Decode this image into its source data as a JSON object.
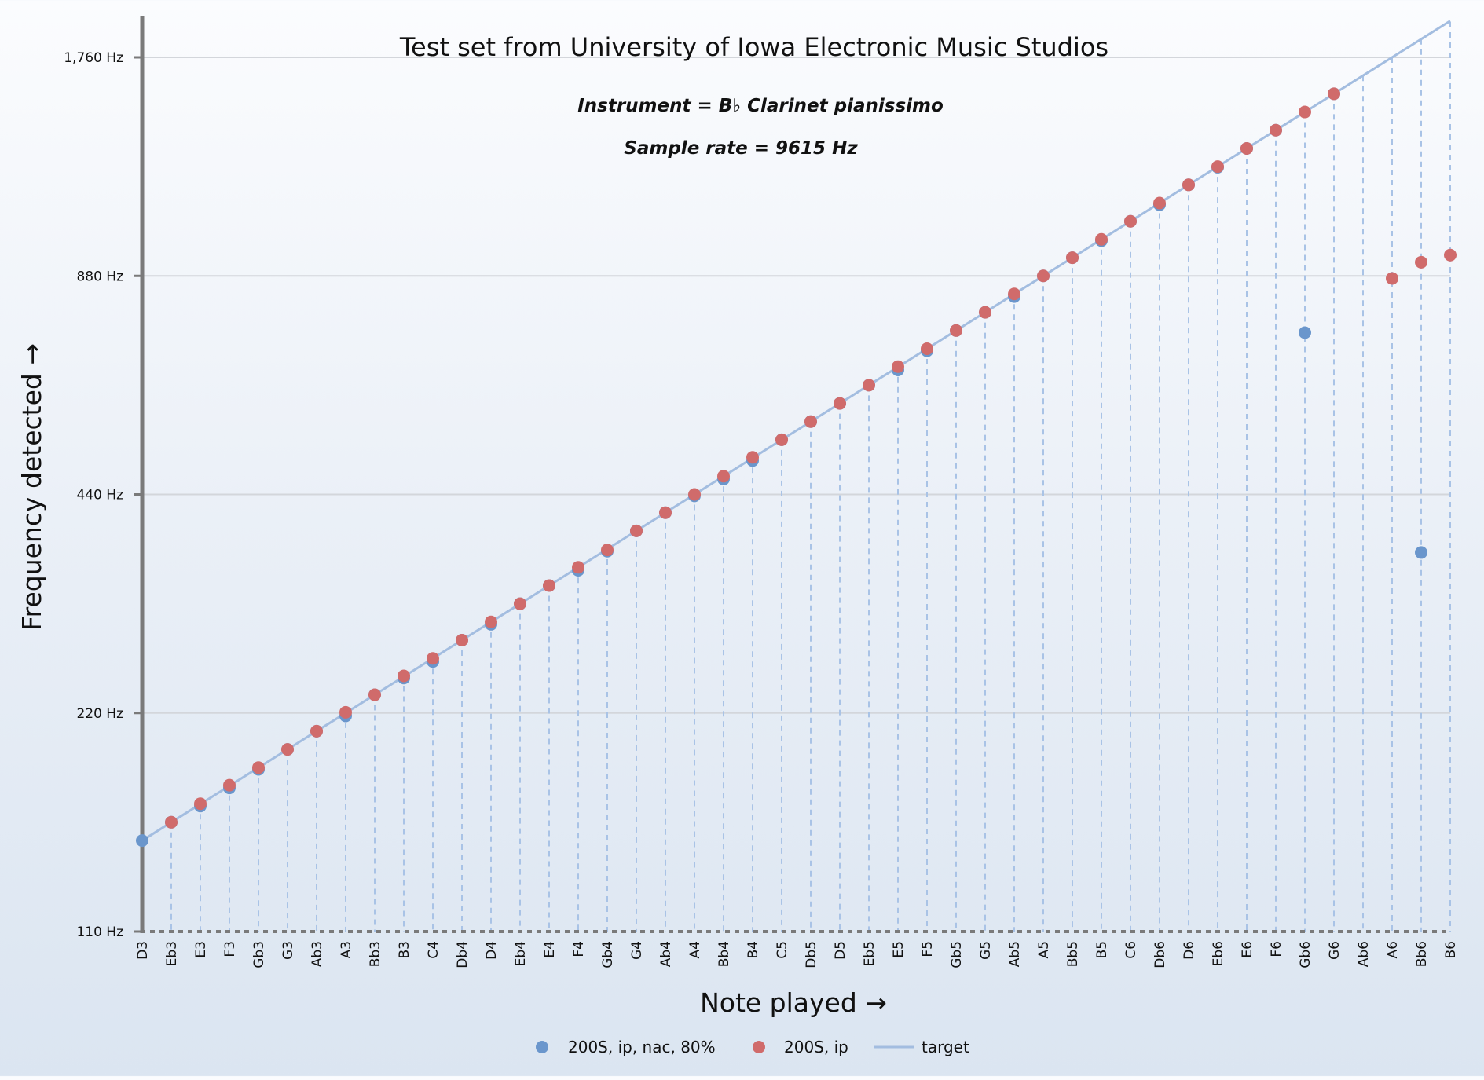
{
  "chart_data": {
    "type": "scatter",
    "title": "Test set from University of Iowa Electronic Music Studios",
    "subtitles": [
      "Instrument = B♭ Clarinet pianissimo",
      "Sample rate = 9615 Hz"
    ],
    "xlabel": "Note played →",
    "ylabel": "Frequency detected →",
    "y_scale": "log2",
    "ylim": [
      110,
      1760
    ],
    "y_ticks": [
      {
        "value": 110,
        "label": "110 Hz"
      },
      {
        "value": 220,
        "label": "220 Hz"
      },
      {
        "value": 440,
        "label": "440 Hz"
      },
      {
        "value": 880,
        "label": "880 Hz"
      },
      {
        "value": 1760,
        "label": "1,760 Hz"
      }
    ],
    "grid": true,
    "legend_position": "bottom",
    "categories": [
      "D3",
      "Eb3",
      "E3",
      "F3",
      "Gb3",
      "G3",
      "Ab3",
      "A3",
      "Bb3",
      "B3",
      "C4",
      "Db4",
      "D4",
      "Eb4",
      "E4",
      "F4",
      "Gb4",
      "G4",
      "Ab4",
      "A4",
      "Bb4",
      "B4",
      "C5",
      "Db5",
      "D5",
      "Eb5",
      "E5",
      "F5",
      "Gb5",
      "G5",
      "Ab5",
      "A5",
      "Bb5",
      "B5",
      "C6",
      "Db6",
      "D6",
      "Eb6",
      "E6",
      "F6",
      "Gb6",
      "G6",
      "Ab6",
      "A6",
      "Bb6",
      "B6"
    ],
    "series": [
      {
        "name": "200S, ip, nac, 80%",
        "kind": "scatter",
        "color": "#6a96cc",
        "values": [
          146.8,
          155.6,
          163.8,
          173.5,
          184.0,
          196.0,
          207.7,
          218.0,
          233.1,
          245.8,
          259.0,
          277.2,
          291.5,
          311.1,
          329.6,
          346.0,
          367.5,
          392.0,
          415.3,
          438.0,
          462.0,
          490.0,
          523.3,
          554.4,
          587.3,
          622.3,
          653.0,
          694.0,
          740.0,
          784.0,
          824.0,
          880.0,
          932.3,
          984.0,
          1046.5,
          1103.0,
          1174.7,
          1242.0,
          1318.5,
          1396.9,
          735.0,
          1568.0,
          null,
          null,
          366.0,
          null
        ]
      },
      {
        "name": "200S, ip",
        "kind": "scatter",
        "color": "#d06b6b",
        "values": [
          null,
          155.6,
          165.0,
          175.0,
          185.0,
          196.0,
          207.7,
          220.5,
          233.1,
          247.5,
          261.6,
          277.2,
          293.7,
          311.1,
          329.6,
          349.2,
          369.0,
          392.0,
          415.3,
          440.0,
          466.2,
          494.9,
          523.3,
          554.4,
          587.3,
          622.3,
          660.0,
          698.5,
          740.0,
          784.0,
          831.0,
          880.0,
          932.3,
          988.0,
          1046.5,
          1108.7,
          1174.7,
          1244.5,
          1318.5,
          1396.9,
          1480.0,
          1568.0,
          null,
          873.0,
          919.0,
          940.0
        ]
      },
      {
        "name": "target",
        "kind": "line",
        "color": "#a3bde0",
        "values": [
          146.8,
          155.6,
          164.8,
          174.6,
          185.0,
          196.0,
          207.7,
          220.0,
          233.1,
          246.9,
          261.6,
          277.2,
          293.7,
          311.1,
          329.6,
          349.2,
          370.0,
          392.0,
          415.3,
          440.0,
          466.2,
          493.9,
          523.3,
          554.4,
          587.3,
          622.3,
          659.3,
          698.5,
          740.0,
          784.0,
          830.6,
          880.0,
          932.3,
          987.8,
          1046.5,
          1108.7,
          1174.7,
          1244.5,
          1318.5,
          1396.9,
          1480.0,
          1568.0,
          1661.2,
          1760.0,
          1864.7,
          1975.5
        ]
      }
    ]
  }
}
